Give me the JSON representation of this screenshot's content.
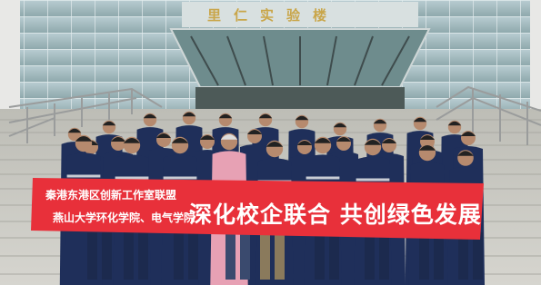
{
  "building_sign": "里仁实验楼",
  "banner": {
    "left_line1": "秦港东港区创新工作室联盟",
    "left_line2": "燕山大学环化学院、电气学院",
    "slogan": "深化校企联合 共创绿色发展"
  }
}
